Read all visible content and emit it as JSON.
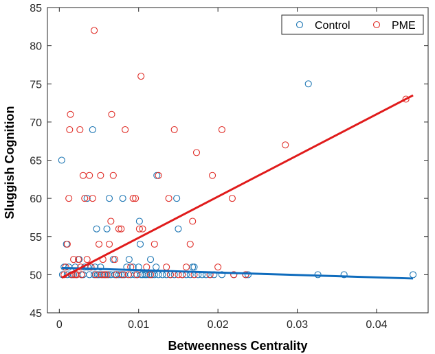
{
  "chart_data": {
    "type": "scatter",
    "xlabel": "Betweenness Centrality",
    "ylabel": "Sluggish Cognition",
    "xlim": [
      -0.0015,
      0.0465
    ],
    "ylim": [
      45,
      85
    ],
    "xticks": [
      0,
      0.01,
      0.02,
      0.03,
      0.04
    ],
    "xtick_labels": [
      "0",
      "0.01",
      "0.02",
      "0.03",
      "0.04"
    ],
    "yticks": [
      45,
      50,
      55,
      60,
      65,
      70,
      75,
      80,
      85
    ],
    "ytick_labels": [
      "45",
      "50",
      "55",
      "60",
      "65",
      "70",
      "75",
      "80",
      "85"
    ],
    "grid": false,
    "legend_position": "top-right",
    "series": [
      {
        "name": "Control",
        "color": "#1f77b4",
        "marker": "open-circle",
        "x": [
          0.0003,
          0.0004,
          0.0006,
          0.0009,
          0.001,
          0.0012,
          0.0015,
          0.0018,
          0.002,
          0.0022,
          0.0025,
          0.0028,
          0.003,
          0.0032,
          0.0035,
          0.0036,
          0.0038,
          0.004,
          0.0042,
          0.0044,
          0.0045,
          0.0047,
          0.0048,
          0.005,
          0.0052,
          0.0055,
          0.0058,
          0.006,
          0.0062,
          0.0063,
          0.0065,
          0.0068,
          0.007,
          0.0072,
          0.0075,
          0.0078,
          0.008,
          0.0082,
          0.0085,
          0.0088,
          0.009,
          0.0093,
          0.0095,
          0.0098,
          0.01,
          0.0101,
          0.0102,
          0.0103,
          0.0105,
          0.0108,
          0.011,
          0.0113,
          0.0115,
          0.0117,
          0.012,
          0.0122,
          0.0123,
          0.0125,
          0.013,
          0.0135,
          0.014,
          0.0145,
          0.0148,
          0.015,
          0.0155,
          0.016,
          0.0165,
          0.0168,
          0.017,
          0.0175,
          0.018,
          0.0185,
          0.019,
          0.0195,
          0.0205,
          0.022,
          0.0235,
          0.0238,
          0.0314,
          0.0326,
          0.0359,
          0.0446
        ],
        "y": [
          65,
          50,
          51,
          54,
          50,
          51,
          50,
          50,
          51,
          50,
          52,
          50,
          50,
          51,
          60,
          51,
          50,
          51,
          69,
          50,
          51,
          56,
          50,
          50,
          51,
          50,
          50,
          56,
          50,
          60,
          50,
          52,
          50,
          50,
          50,
          50,
          60,
          50,
          51,
          52,
          50,
          51,
          50,
          50,
          51,
          57,
          54,
          50,
          50,
          50,
          50,
          50,
          52,
          50,
          50,
          51,
          63,
          50,
          50,
          50,
          50,
          50,
          60,
          56,
          50,
          50,
          50,
          51,
          51,
          50,
          50,
          50,
          50,
          50,
          50,
          50,
          50,
          50,
          75,
          50,
          50,
          50
        ]
      },
      {
        "name": "PME",
        "color": "#e0302a",
        "marker": "open-circle",
        "x": [
          0.0006,
          0.0008,
          0.001,
          0.0012,
          0.0013,
          0.0014,
          0.0016,
          0.0018,
          0.002,
          0.0022,
          0.0024,
          0.0026,
          0.0027,
          0.0028,
          0.003,
          0.0032,
          0.0035,
          0.0038,
          0.004,
          0.0042,
          0.0044,
          0.0046,
          0.005,
          0.0052,
          0.0053,
          0.0055,
          0.0057,
          0.006,
          0.0063,
          0.0065,
          0.0066,
          0.0068,
          0.007,
          0.0072,
          0.0075,
          0.0078,
          0.008,
          0.0083,
          0.0087,
          0.009,
          0.0093,
          0.0096,
          0.0098,
          0.0101,
          0.0103,
          0.0105,
          0.011,
          0.0115,
          0.012,
          0.0125,
          0.0135,
          0.0138,
          0.014,
          0.0145,
          0.015,
          0.0155,
          0.016,
          0.0165,
          0.0168,
          0.017,
          0.0173,
          0.019,
          0.0193,
          0.02,
          0.0205,
          0.0218,
          0.022,
          0.0235,
          0.0285,
          0.0437
        ],
        "y": [
          50,
          51,
          54,
          60,
          69,
          71,
          50,
          52,
          50,
          50,
          52,
          69,
          51,
          50,
          63,
          60,
          52,
          63,
          51,
          60,
          82,
          50,
          54,
          63,
          50,
          52,
          50,
          50,
          54,
          57,
          71,
          63,
          52,
          50,
          56,
          56,
          50,
          69,
          50,
          51,
          60,
          60,
          50,
          56,
          76,
          56,
          51,
          50,
          54,
          63,
          51,
          60,
          50,
          69,
          50,
          50,
          51,
          54,
          57,
          50,
          66,
          50,
          63,
          51,
          69,
          60,
          50,
          50,
          67,
          73
        ]
      }
    ],
    "fit_lines": [
      {
        "series": "Control",
        "color": "#0f6cbd",
        "x": [
          0.0003,
          0.0446
        ],
        "y": [
          50.9,
          49.5
        ]
      },
      {
        "series": "PME",
        "color": "#e01b1b",
        "x": [
          0.0003,
          0.0446
        ],
        "y": [
          49.6,
          73.5
        ]
      }
    ]
  }
}
